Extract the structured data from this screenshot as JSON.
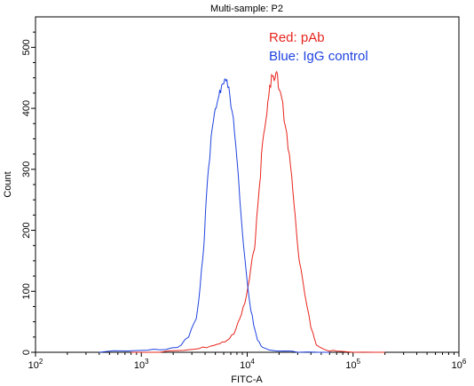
{
  "chart_data": {
    "type": "line",
    "title": "Multi-sample: P2",
    "xlabel": "FITC-A",
    "ylabel": "Count",
    "xscale": "log",
    "xlim": [
      100,
      1000000
    ],
    "ylim": [
      0,
      550
    ],
    "x_ticks": [
      {
        "value": 100,
        "base": "10",
        "exp": "2"
      },
      {
        "value": 1000,
        "base": "10",
        "exp": "3"
      },
      {
        "value": 10000,
        "base": "10",
        "exp": "4"
      },
      {
        "value": 100000,
        "base": "10",
        "exp": "5"
      },
      {
        "value": 1000000,
        "base": "10",
        "exp": "6"
      }
    ],
    "y_ticks": [
      0,
      100,
      200,
      300,
      400,
      500
    ],
    "grid": false,
    "legend": [
      {
        "text": "Red: pAb",
        "color": "#e8241c"
      },
      {
        "text": "Blue: IgG control",
        "color": "#1f43e0"
      }
    ],
    "series": [
      {
        "color": "#e8241c",
        "x": [
          800,
          1500,
          2500,
          3500,
          4500,
          5500,
          6500,
          7500,
          8500,
          9500,
          10500,
          11500,
          12000,
          13000,
          14000,
          15000,
          16000,
          17000,
          18000,
          19000,
          20000,
          21000,
          23000,
          25000,
          27000,
          29000,
          31000,
          35000,
          40000,
          45000,
          55000,
          70000,
          100000,
          200000
        ],
        "y": [
          0,
          0,
          3,
          6,
          10,
          14,
          20,
          30,
          55,
          80,
          120,
          165,
          190,
          270,
          345,
          380,
          420,
          455,
          445,
          460,
          430,
          420,
          370,
          325,
          265,
          205,
          150,
          95,
          40,
          12,
          4,
          2,
          0,
          0
        ]
      },
      {
        "color": "#1f43e0",
        "x": [
          400,
          1000,
          1500,
          2200,
          2800,
          3300,
          3600,
          3900,
          4100,
          4300,
          4700,
          5000,
          5300,
          5600,
          6000,
          6300,
          6700,
          7200,
          7800,
          8200,
          8700,
          9500,
          10500,
          11500,
          12500,
          14000,
          16000,
          20000,
          30000,
          60000
        ],
        "y": [
          0,
          3,
          4,
          8,
          25,
          55,
          110,
          175,
          250,
          300,
          370,
          400,
          415,
          425,
          440,
          445,
          435,
          395,
          340,
          295,
          230,
          155,
          85,
          45,
          20,
          8,
          4,
          2,
          0,
          0
        ]
      }
    ]
  }
}
